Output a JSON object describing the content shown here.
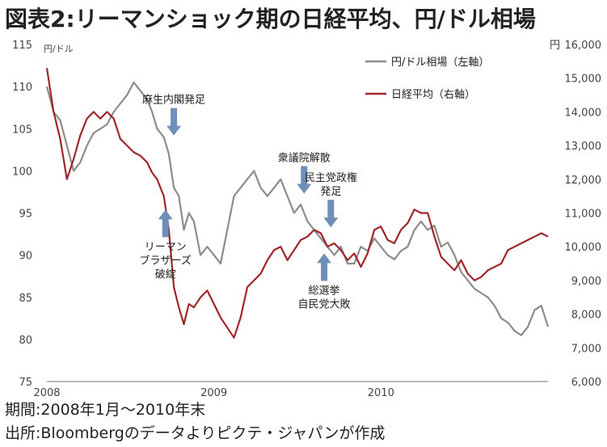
{
  "title": "図表2:リーマンショック期の日経平均、円/ドル相場",
  "footer": {
    "period": "期間:2008年1月～2010年末",
    "source": "出所:Bloombergのデータよりピクテ・ジャパンが作成"
  },
  "chart_data": {
    "type": "line",
    "left_unit": "円/ドル",
    "right_unit": "円",
    "ylim_left": [
      75,
      115
    ],
    "ylim_right": [
      6000,
      16000
    ],
    "left_ticks": [
      "75",
      "80",
      "85",
      "90",
      "95",
      "100",
      "105",
      "110",
      "115"
    ],
    "right_ticks": [
      "6,000",
      "7,000",
      "8,000",
      "9,000",
      "10,000",
      "11,000",
      "12,000",
      "13,000",
      "14,000",
      "15,000",
      "16,000"
    ],
    "xlim": [
      2008.0,
      2011.0
    ],
    "x_ticks": [
      {
        "label": "2008",
        "value": 2008.0
      },
      {
        "label": "2009",
        "value": 2009.0
      },
      {
        "label": "2010",
        "value": 2010.0
      }
    ],
    "series": [
      {
        "name": "円/ドル相場（左軸）",
        "axis": "left",
        "color": "#8c8c8c",
        "x": [
          2008.0,
          2008.04,
          2008.08,
          2008.12,
          2008.16,
          2008.2,
          2008.24,
          2008.28,
          2008.32,
          2008.36,
          2008.4,
          2008.44,
          2008.48,
          2008.52,
          2008.56,
          2008.6,
          2008.63,
          2008.66,
          2008.7,
          2008.73,
          2008.76,
          2008.79,
          2008.82,
          2008.85,
          2008.88,
          2008.92,
          2008.96,
          2009.0,
          2009.04,
          2009.08,
          2009.12,
          2009.16,
          2009.2,
          2009.24,
          2009.28,
          2009.32,
          2009.36,
          2009.4,
          2009.44,
          2009.48,
          2009.52,
          2009.56,
          2009.6,
          2009.64,
          2009.68,
          2009.72,
          2009.76,
          2009.8,
          2009.84,
          2009.88,
          2009.92,
          2009.96,
          2010.0,
          2010.04,
          2010.08,
          2010.12,
          2010.16,
          2010.2,
          2010.24,
          2010.28,
          2010.32,
          2010.36,
          2010.4,
          2010.44,
          2010.48,
          2010.52,
          2010.56,
          2010.6,
          2010.64,
          2010.68,
          2010.72,
          2010.76,
          2010.8,
          2010.84,
          2010.88,
          2010.92,
          2010.96,
          2011.0
        ],
        "y": [
          110,
          107,
          106,
          103,
          100,
          101,
          103,
          104.5,
          105,
          105.5,
          107,
          108,
          109,
          110.5,
          109.5,
          108.5,
          107,
          105,
          104,
          102,
          98,
          97,
          93,
          95,
          94,
          90,
          91,
          90,
          89,
          93,
          97,
          98,
          99,
          100,
          98,
          97,
          98,
          99,
          97,
          95,
          96,
          94,
          93,
          92,
          91,
          90,
          91,
          89,
          89,
          91,
          90.5,
          92,
          91,
          90,
          89.5,
          90.5,
          91,
          93,
          94,
          93,
          93.5,
          91,
          91.5,
          90,
          88,
          87,
          86,
          85.5,
          85,
          84,
          82.5,
          82,
          81,
          80.5,
          81.5,
          83.5,
          84,
          81.5
        ]
      },
      {
        "name": "日経平均（右軸）",
        "axis": "right",
        "color": "#a0262c",
        "x": [
          2008.0,
          2008.04,
          2008.08,
          2008.12,
          2008.16,
          2008.2,
          2008.24,
          2008.28,
          2008.32,
          2008.36,
          2008.4,
          2008.44,
          2008.48,
          2008.52,
          2008.56,
          2008.6,
          2008.63,
          2008.66,
          2008.7,
          2008.73,
          2008.76,
          2008.79,
          2008.82,
          2008.85,
          2008.88,
          2008.92,
          2008.96,
          2009.0,
          2009.04,
          2009.08,
          2009.12,
          2009.16,
          2009.2,
          2009.24,
          2009.28,
          2009.32,
          2009.36,
          2009.4,
          2009.44,
          2009.48,
          2009.52,
          2009.56,
          2009.6,
          2009.64,
          2009.68,
          2009.72,
          2009.76,
          2009.8,
          2009.84,
          2009.88,
          2009.92,
          2009.96,
          2010.0,
          2010.04,
          2010.08,
          2010.12,
          2010.16,
          2010.2,
          2010.24,
          2010.28,
          2010.32,
          2010.36,
          2010.4,
          2010.44,
          2010.48,
          2010.52,
          2010.56,
          2010.6,
          2010.64,
          2010.68,
          2010.72,
          2010.76,
          2010.8,
          2010.84,
          2010.88,
          2010.92,
          2010.96,
          2011.0
        ],
        "y": [
          15300,
          14000,
          13200,
          12000,
          12600,
          13300,
          13800,
          14000,
          13800,
          14000,
          13800,
          13200,
          13000,
          12800,
          12700,
          12500,
          12200,
          12000,
          11500,
          10500,
          8800,
          8200,
          7700,
          8300,
          8200,
          8500,
          8700,
          8300,
          7900,
          7600,
          7300,
          7900,
          8800,
          9000,
          9200,
          9600,
          9900,
          10000,
          9600,
          9900,
          10200,
          10300,
          10500,
          10400,
          10000,
          10100,
          9900,
          9600,
          9800,
          9400,
          9800,
          10500,
          10600,
          10200,
          10100,
          10500,
          10700,
          11100,
          11000,
          11000,
          10300,
          9700,
          9500,
          9300,
          9600,
          9200,
          9000,
          9100,
          9300,
          9400,
          9500,
          9900,
          10000,
          10100,
          10200,
          10300,
          10400,
          10300
        ]
      }
    ],
    "annotations": [
      {
        "text": "麻生内閣発足",
        "lines": [
          "麻生内閣発足"
        ],
        "arrow": "down",
        "x": 2008.76,
        "axis": "left",
        "target": 104.2
      },
      {
        "text": "リーマン ブラザーズ 破綻",
        "lines": [
          "リーマン",
          "ブラザーズ",
          "破綻"
        ],
        "arrow": "up",
        "x": 2008.71,
        "axis": "right",
        "target": 11100
      },
      {
        "text": "衆議院解散",
        "lines": [
          "衆議院解散"
        ],
        "arrow": "down",
        "x": 2009.54,
        "axis": "left",
        "target": 97.3
      },
      {
        "text": "民主党政権 発足",
        "lines": [
          "民主党政権",
          "発足"
        ],
        "arrow": "down",
        "x": 2009.7,
        "axis": "left",
        "target": 93.3
      },
      {
        "text": "総選挙 自民党大敗",
        "lines": [
          "総選挙",
          "自民党大敗"
        ],
        "arrow": "up",
        "x": 2009.66,
        "axis": "right",
        "target": 9800
      }
    ]
  }
}
